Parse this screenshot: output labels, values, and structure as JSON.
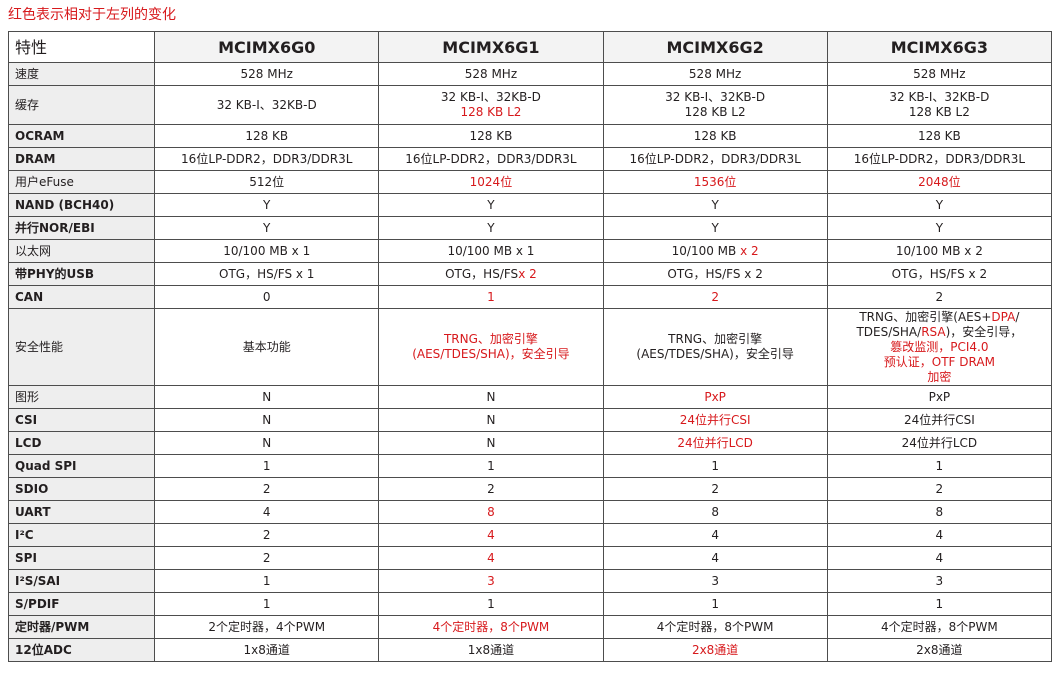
{
  "caption": "红色表示相对于左列的变化",
  "header": {
    "label": "特性",
    "columns": [
      "MCIMX6G0",
      "MCIMX6G1",
      "MCIMX6G2",
      "MCIMX6G3"
    ]
  },
  "colors": {
    "change": "#d7191c",
    "text": "#231f20",
    "border": "#4d4d4d"
  },
  "rows": [
    {
      "name": "speed",
      "label": "速度",
      "bold": false,
      "cells": [
        [
          {
            "t": "528 MHz"
          }
        ],
        [
          {
            "t": "528 MHz"
          }
        ],
        [
          {
            "t": "528 MHz"
          }
        ],
        [
          {
            "t": "528 MHz"
          }
        ]
      ]
    },
    {
      "name": "cache",
      "label": "缓存",
      "bold": false,
      "tall": true,
      "cells": [
        [
          {
            "t": "32 KB-I、32KB-D"
          }
        ],
        [
          {
            "t": "32 KB-I、32KB-D"
          },
          {
            "br": true
          },
          {
            "t": "128 KB L2",
            "red": true
          }
        ],
        [
          {
            "t": "32 KB-I、32KB-D"
          },
          {
            "br": true
          },
          {
            "t": "128 KB L2"
          }
        ],
        [
          {
            "t": "32 KB-I、32KB-D"
          },
          {
            "br": true
          },
          {
            "t": "128 KB L2"
          }
        ]
      ]
    },
    {
      "name": "ocram",
      "label": "OCRAM",
      "bold": true,
      "cells": [
        [
          {
            "t": "128 KB"
          }
        ],
        [
          {
            "t": "128 KB"
          }
        ],
        [
          {
            "t": "128 KB"
          }
        ],
        [
          {
            "t": "128 KB"
          }
        ]
      ]
    },
    {
      "name": "dram",
      "label": "DRAM",
      "bold": true,
      "cells": [
        [
          {
            "t": "16位LP-DDR2，DDR3/DDR3L"
          }
        ],
        [
          {
            "t": "16位LP-DDR2，DDR3/DDR3L"
          }
        ],
        [
          {
            "t": "16位LP-DDR2，DDR3/DDR3L"
          }
        ],
        [
          {
            "t": "16位LP-DDR2，DDR3/DDR3L"
          }
        ]
      ]
    },
    {
      "name": "efuse",
      "label": "用户eFuse",
      "bold": false,
      "cells": [
        [
          {
            "t": "512位"
          }
        ],
        [
          {
            "t": "1024位",
            "red": true
          }
        ],
        [
          {
            "t": "1536位",
            "red": true
          }
        ],
        [
          {
            "t": "2048位",
            "red": true
          }
        ]
      ]
    },
    {
      "name": "nand",
      "label": "NAND (BCH40)",
      "bold": true,
      "cells": [
        [
          {
            "t": "Y"
          }
        ],
        [
          {
            "t": "Y"
          }
        ],
        [
          {
            "t": "Y"
          }
        ],
        [
          {
            "t": "Y"
          }
        ]
      ]
    },
    {
      "name": "nor",
      "label": "并行NOR/EBI",
      "bold": true,
      "cells": [
        [
          {
            "t": "Y"
          }
        ],
        [
          {
            "t": "Y"
          }
        ],
        [
          {
            "t": "Y"
          }
        ],
        [
          {
            "t": "Y"
          }
        ]
      ]
    },
    {
      "name": "ethernet",
      "label": "以太网",
      "bold": false,
      "cells": [
        [
          {
            "t": "10/100 MB x 1"
          }
        ],
        [
          {
            "t": "10/100 MB x 1"
          }
        ],
        [
          {
            "t": "10/100 MB "
          },
          {
            "t": "x 2",
            "red": true
          }
        ],
        [
          {
            "t": "10/100 MB x 2"
          }
        ]
      ]
    },
    {
      "name": "usb",
      "label": "带PHY的USB",
      "bold": true,
      "cells": [
        [
          {
            "t": "OTG，HS/FS x 1"
          }
        ],
        [
          {
            "t": "OTG，HS/FS"
          },
          {
            "t": "x 2",
            "red": true
          }
        ],
        [
          {
            "t": "OTG，HS/FS x 2"
          }
        ],
        [
          {
            "t": "OTG，HS/FS x 2"
          }
        ]
      ]
    },
    {
      "name": "can",
      "label": "CAN",
      "bold": true,
      "cells": [
        [
          {
            "t": "0"
          }
        ],
        [
          {
            "t": "1",
            "red": true
          }
        ],
        [
          {
            "t": "2",
            "red": true
          }
        ],
        [
          {
            "t": "2"
          }
        ]
      ]
    },
    {
      "name": "security",
      "label": "安全性能",
      "bold": false,
      "xtall": true,
      "cells": [
        [
          {
            "t": "基本功能"
          }
        ],
        [
          {
            "t": "TRNG、加密引擎",
            "red": true
          },
          {
            "br": true
          },
          {
            "t": "(AES/TDES/SHA)，安全引导",
            "red": true
          }
        ],
        [
          {
            "t": "TRNG、加密引擎"
          },
          {
            "br": true
          },
          {
            "t": "(AES/TDES/SHA)，安全引导"
          }
        ],
        [
          {
            "t": "TRNG、加密引擎(AES+"
          },
          {
            "t": "DPA",
            "red": true
          },
          {
            "t": "/"
          },
          {
            "br": true
          },
          {
            "t": "TDES/SHA/"
          },
          {
            "t": "RSA",
            "red": true
          },
          {
            "t": ")，安全引导，"
          },
          {
            "br": true
          },
          {
            "t": "篡改监测，PCI4.0",
            "red": true
          },
          {
            "br": true
          },
          {
            "t": "预认证，OTF DRAM",
            "red": true
          },
          {
            "br": true
          },
          {
            "t": "加密",
            "red": true
          }
        ]
      ]
    },
    {
      "name": "graphics",
      "label": "图形",
      "bold": false,
      "cells": [
        [
          {
            "t": "N"
          }
        ],
        [
          {
            "t": "N"
          }
        ],
        [
          {
            "t": "PxP",
            "red": true
          }
        ],
        [
          {
            "t": "PxP"
          }
        ]
      ]
    },
    {
      "name": "csi",
      "label": "CSI",
      "bold": true,
      "cells": [
        [
          {
            "t": "N"
          }
        ],
        [
          {
            "t": "N"
          }
        ],
        [
          {
            "t": "24位并行CSI",
            "red": true
          }
        ],
        [
          {
            "t": "24位并行CSI"
          }
        ]
      ]
    },
    {
      "name": "lcd",
      "label": "LCD",
      "bold": true,
      "cells": [
        [
          {
            "t": "N"
          }
        ],
        [
          {
            "t": "N"
          }
        ],
        [
          {
            "t": "24位并行LCD",
            "red": true
          }
        ],
        [
          {
            "t": "24位并行LCD"
          }
        ]
      ]
    },
    {
      "name": "quadspi",
      "label": "Quad SPI",
      "bold": true,
      "cells": [
        [
          {
            "t": "1"
          }
        ],
        [
          {
            "t": "1"
          }
        ],
        [
          {
            "t": "1"
          }
        ],
        [
          {
            "t": "1"
          }
        ]
      ]
    },
    {
      "name": "sdio",
      "label": "SDIO",
      "bold": true,
      "cells": [
        [
          {
            "t": "2"
          }
        ],
        [
          {
            "t": "2"
          }
        ],
        [
          {
            "t": "2"
          }
        ],
        [
          {
            "t": "2"
          }
        ]
      ]
    },
    {
      "name": "uart",
      "label": "UART",
      "bold": true,
      "cells": [
        [
          {
            "t": "4"
          }
        ],
        [
          {
            "t": "8",
            "red": true
          }
        ],
        [
          {
            "t": "8"
          }
        ],
        [
          {
            "t": "8"
          }
        ]
      ]
    },
    {
      "name": "i2c",
      "label": "I²C",
      "bold": true,
      "cells": [
        [
          {
            "t": "2"
          }
        ],
        [
          {
            "t": "4",
            "red": true
          }
        ],
        [
          {
            "t": "4"
          }
        ],
        [
          {
            "t": "4"
          }
        ]
      ]
    },
    {
      "name": "spi",
      "label": "SPI",
      "bold": true,
      "cells": [
        [
          {
            "t": "2"
          }
        ],
        [
          {
            "t": "4",
            "red": true
          }
        ],
        [
          {
            "t": "4"
          }
        ],
        [
          {
            "t": "4"
          }
        ]
      ]
    },
    {
      "name": "i2s",
      "label": "I²S/SAI",
      "bold": true,
      "cells": [
        [
          {
            "t": "1"
          }
        ],
        [
          {
            "t": "3",
            "red": true
          }
        ],
        [
          {
            "t": "3"
          }
        ],
        [
          {
            "t": "3"
          }
        ]
      ]
    },
    {
      "name": "spdif",
      "label": "S/PDIF",
      "bold": true,
      "cells": [
        [
          {
            "t": "1"
          }
        ],
        [
          {
            "t": "1"
          }
        ],
        [
          {
            "t": "1"
          }
        ],
        [
          {
            "t": "1"
          }
        ]
      ]
    },
    {
      "name": "timer",
      "label": "定时器/PWM",
      "bold": true,
      "cells": [
        [
          {
            "t": "2个定时器，4个PWM"
          }
        ],
        [
          {
            "t": "4个定时器，8个PWM",
            "red": true
          }
        ],
        [
          {
            "t": "4个定时器，8个PWM"
          }
        ],
        [
          {
            "t": "4个定时器，8个PWM"
          }
        ]
      ]
    },
    {
      "name": "adc",
      "label": "12位ADC",
      "bold": true,
      "cells": [
        [
          {
            "t": "1x8通道"
          }
        ],
        [
          {
            "t": "1x8通道"
          }
        ],
        [
          {
            "t": "2x8通道",
            "red": true
          }
        ],
        [
          {
            "t": "2x8通道"
          }
        ]
      ]
    }
  ]
}
